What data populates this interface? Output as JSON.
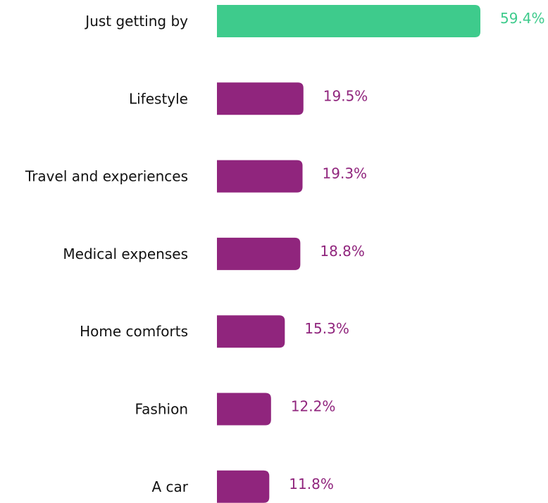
{
  "chart_data": {
    "type": "bar",
    "orientation": "horizontal",
    "categories": [
      "Just getting by",
      "Lifestyle",
      "Travel and experiences",
      "Medical expenses",
      "Home comforts",
      "Fashion",
      "A car"
    ],
    "values": [
      59.4,
      19.5,
      19.3,
      18.8,
      15.3,
      12.2,
      11.8
    ],
    "value_labels": [
      "59.4%",
      "19.5%",
      "19.3%",
      "18.8%",
      "15.3%",
      "12.2%",
      "11.8%"
    ],
    "unit": "%",
    "xlim": [
      0,
      59.4
    ],
    "grid": false,
    "legend": "none",
    "highlight_index": 0,
    "colors": {
      "highlight": "#3ecb8c",
      "default": "#90257d",
      "category_text": "#111111"
    }
  }
}
